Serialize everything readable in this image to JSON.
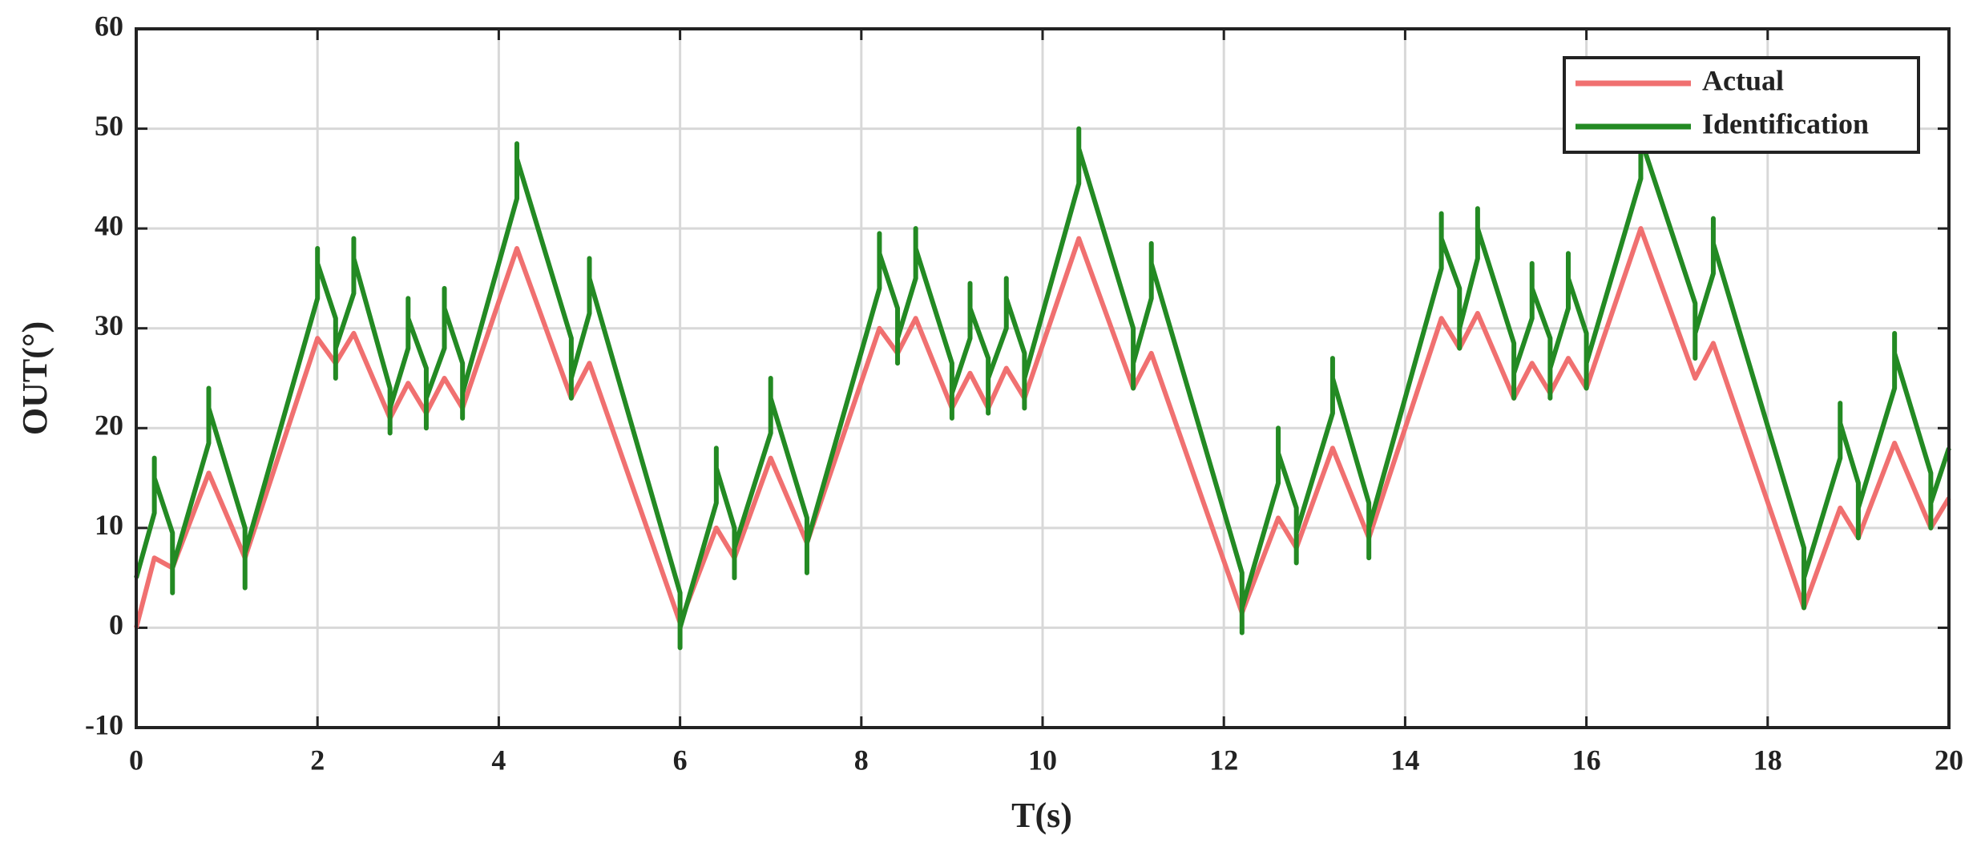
{
  "chart_data": {
    "type": "line",
    "xlabel": "T(s)",
    "ylabel": "OUT(°)",
    "xlim": [
      0,
      20
    ],
    "xticks": [
      0,
      2,
      4,
      6,
      8,
      10,
      12,
      14,
      16,
      18,
      20
    ],
    "ylim": [
      -10,
      60
    ],
    "yticks": [
      -10,
      0,
      10,
      20,
      30,
      40,
      50,
      60
    ],
    "grid": true,
    "legend": "upper right",
    "series": [
      {
        "name": "Actual",
        "color": "#f07070",
        "x": [
          0,
          0.2,
          0.4,
          0.8,
          1.2,
          2.0,
          2.2,
          2.4,
          2.8,
          3.0,
          3.2,
          3.4,
          3.6,
          4.2,
          4.8,
          5.0,
          6.0,
          6.4,
          6.6,
          7.0,
          7.4,
          8.2,
          8.4,
          8.6,
          9.0,
          9.2,
          9.4,
          9.6,
          9.8,
          10.4,
          11.0,
          11.2,
          12.2,
          12.6,
          12.8,
          13.2,
          13.6,
          14.4,
          14.6,
          14.8,
          15.2,
          15.4,
          15.6,
          15.8,
          16.0,
          16.6,
          17.2,
          17.4,
          18.4,
          18.8,
          19.0,
          19.4,
          19.8,
          20.0
        ],
        "values": [
          0,
          7,
          6,
          15.5,
          7,
          29,
          26.5,
          29.5,
          21,
          24.5,
          21.5,
          25,
          22,
          38,
          23,
          26.5,
          0.5,
          10,
          7,
          17,
          8.5,
          30,
          27.5,
          31,
          22,
          25.5,
          22,
          26,
          23,
          39,
          24,
          27.5,
          1.5,
          11,
          8,
          18,
          9,
          31,
          28,
          31.5,
          23,
          26.5,
          23.5,
          27,
          24,
          40,
          25,
          28.5,
          2,
          12,
          9,
          18.5,
          10,
          13
        ]
      },
      {
        "name": "Identification",
        "color": "#238a23",
        "x": [
          0,
          0.2,
          0.2,
          0.2,
          0.4,
          0.4,
          0.4,
          0.8,
          0.8,
          0.8,
          1.2,
          1.2,
          1.2,
          2.0,
          2.0,
          2.0,
          2.2,
          2.2,
          2.2,
          2.4,
          2.4,
          2.4,
          2.8,
          2.8,
          2.8,
          3.0,
          3.0,
          3.0,
          3.2,
          3.2,
          3.2,
          3.4,
          3.4,
          3.4,
          3.6,
          3.6,
          3.6,
          4.2,
          4.2,
          4.2,
          4.8,
          4.8,
          4.8,
          5.0,
          5.0,
          5.0,
          6.0,
          6.0,
          6.0,
          6.4,
          6.4,
          6.4,
          6.6,
          6.6,
          6.6,
          7.0,
          7.0,
          7.0,
          7.4,
          7.4,
          7.4,
          8.2,
          8.2,
          8.2,
          8.4,
          8.4,
          8.4,
          8.6,
          8.6,
          8.6,
          9.0,
          9.0,
          9.0,
          9.2,
          9.2,
          9.2,
          9.4,
          9.4,
          9.4,
          9.6,
          9.6,
          9.6,
          9.8,
          9.8,
          9.8,
          10.4,
          10.4,
          10.4,
          11.0,
          11.0,
          11.0,
          11.2,
          11.2,
          11.2,
          12.2,
          12.2,
          12.2,
          12.6,
          12.6,
          12.6,
          12.8,
          12.8,
          12.8,
          13.2,
          13.2,
          13.2,
          13.6,
          13.6,
          13.6,
          14.4,
          14.4,
          14.4,
          14.6,
          14.6,
          14.6,
          14.8,
          14.8,
          14.8,
          15.2,
          15.2,
          15.2,
          15.4,
          15.4,
          15.4,
          15.6,
          15.6,
          15.6,
          15.8,
          15.8,
          15.8,
          16.0,
          16.0,
          16.0,
          16.6,
          16.6,
          16.6,
          17.2,
          17.2,
          17.2,
          17.4,
          17.4,
          17.4,
          18.4,
          18.4,
          18.4,
          18.8,
          18.8,
          18.8,
          19.0,
          19.0,
          19.0,
          19.4,
          19.4,
          19.4,
          19.8,
          19.8,
          19.8,
          20.0
        ],
        "values": [
          5,
          11.5,
          17,
          15,
          9.5,
          3.5,
          6,
          18.5,
          24,
          22,
          10,
          4,
          7.5,
          33,
          38,
          36.5,
          31,
          25,
          28,
          33.5,
          39,
          37,
          24,
          19.5,
          22,
          28,
          33,
          31,
          26,
          20,
          23,
          28,
          34,
          32,
          26.5,
          21,
          23.5,
          43,
          48.5,
          47,
          29,
          23,
          25,
          31.5,
          37,
          35,
          3.5,
          -2,
          0,
          12.5,
          18,
          16,
          10,
          5,
          8,
          19.5,
          25,
          23,
          11,
          5.5,
          8.5,
          34,
          39.5,
          37.5,
          32,
          26.5,
          29,
          35,
          40,
          38,
          26.5,
          21,
          23.5,
          29,
          34.5,
          32,
          27,
          21.5,
          25,
          30,
          35,
          33,
          27.5,
          22,
          25,
          44.5,
          50,
          48,
          30,
          24,
          26.5,
          33,
          38.5,
          36.5,
          5.5,
          -0.5,
          2,
          14.5,
          20,
          17.5,
          12,
          6.5,
          9.5,
          21.5,
          27,
          25,
          12.5,
          7,
          10,
          36,
          41.5,
          39,
          34,
          28,
          30,
          37,
          42,
          40,
          28.5,
          23,
          25.5,
          31,
          36.5,
          34,
          29,
          23,
          26,
          32,
          37.5,
          35,
          29.5,
          24,
          26.5,
          45,
          51,
          49,
          32.5,
          27,
          29.5,
          35.5,
          41,
          38.5,
          8,
          2,
          5,
          17,
          22.5,
          20.5,
          14.5,
          9,
          12,
          24,
          29.5,
          27.5,
          15.5,
          10,
          12.5,
          18
        ]
      }
    ]
  }
}
